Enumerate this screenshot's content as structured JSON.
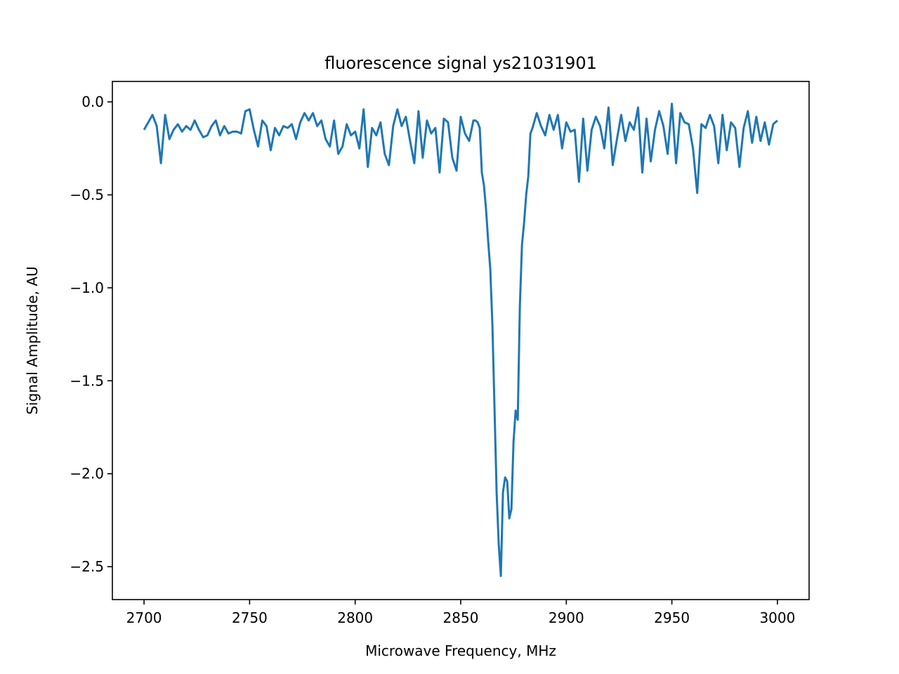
{
  "chart_data": {
    "type": "line",
    "title": "fluorescence signal ys21031901",
    "x_label": "Microwave Frequency, MHz",
    "y_label": "Signal Amplitude, AU",
    "x": [
      2700,
      2702,
      2704,
      2706,
      2708,
      2710,
      2712,
      2714,
      2716,
      2718,
      2720,
      2722,
      2724,
      2726,
      2728,
      2730,
      2732,
      2734,
      2736,
      2738,
      2740,
      2742,
      2744,
      2746,
      2748,
      2750,
      2752,
      2754,
      2756,
      2758,
      2760,
      2762,
      2764,
      2766,
      2768,
      2770,
      2772,
      2774,
      2776,
      2778,
      2780,
      2782,
      2784,
      2786,
      2788,
      2790,
      2792,
      2794,
      2796,
      2798,
      2800,
      2802,
      2804,
      2806,
      2808,
      2810,
      2812,
      2814,
      2816,
      2818,
      2820,
      2822,
      2824,
      2826,
      2828,
      2830,
      2832,
      2834,
      2836,
      2838,
      2840,
      2842,
      2844,
      2846,
      2848,
      2850,
      2852,
      2854,
      2856,
      2857,
      2858,
      2859,
      2860,
      2861,
      2862,
      2863,
      2864,
      2865,
      2866,
      2867,
      2868,
      2869,
      2870,
      2871,
      2872,
      2873,
      2874,
      2875,
      2876,
      2877,
      2878,
      2879,
      2880,
      2881,
      2882,
      2883,
      2884,
      2886,
      2888,
      2890,
      2892,
      2894,
      2896,
      2898,
      2900,
      2902,
      2904,
      2906,
      2908,
      2910,
      2912,
      2914,
      2916,
      2918,
      2920,
      2922,
      2924,
      2926,
      2928,
      2930,
      2932,
      2934,
      2936,
      2938,
      2940,
      2942,
      2944,
      2946,
      2948,
      2950,
      2952,
      2954,
      2956,
      2958,
      2960,
      2962,
      2964,
      2966,
      2968,
      2970,
      2972,
      2974,
      2976,
      2978,
      2980,
      2982,
      2984,
      2986,
      2988,
      2990,
      2992,
      2994,
      2996,
      2998,
      3000
    ],
    "series": [
      {
        "name": "signal",
        "color": "#1f77b4",
        "values": [
          -0.15,
          -0.11,
          -0.07,
          -0.13,
          -0.33,
          -0.07,
          -0.2,
          -0.15,
          -0.12,
          -0.16,
          -0.13,
          -0.15,
          -0.1,
          -0.15,
          -0.19,
          -0.18,
          -0.13,
          -0.1,
          -0.18,
          -0.13,
          -0.17,
          -0.16,
          -0.16,
          -0.17,
          -0.05,
          -0.04,
          -0.15,
          -0.24,
          -0.1,
          -0.13,
          -0.26,
          -0.14,
          -0.18,
          -0.13,
          -0.14,
          -0.12,
          -0.2,
          -0.11,
          -0.06,
          -0.1,
          -0.06,
          -0.13,
          -0.1,
          -0.2,
          -0.24,
          -0.1,
          -0.28,
          -0.24,
          -0.12,
          -0.18,
          -0.16,
          -0.25,
          -0.04,
          -0.35,
          -0.14,
          -0.18,
          -0.11,
          -0.28,
          -0.34,
          -0.13,
          -0.04,
          -0.13,
          -0.08,
          -0.21,
          -0.33,
          -0.05,
          -0.3,
          -0.1,
          -0.17,
          -0.14,
          -0.38,
          -0.09,
          -0.11,
          -0.3,
          -0.37,
          -0.08,
          -0.17,
          -0.21,
          -0.1,
          -0.1,
          -0.11,
          -0.14,
          -0.38,
          -0.45,
          -0.58,
          -0.75,
          -0.9,
          -1.2,
          -1.65,
          -2.1,
          -2.38,
          -2.55,
          -2.1,
          -2.02,
          -2.04,
          -2.24,
          -2.19,
          -1.83,
          -1.66,
          -1.71,
          -1.1,
          -0.77,
          -0.65,
          -0.5,
          -0.4,
          -0.17,
          -0.14,
          -0.06,
          -0.13,
          -0.18,
          -0.07,
          -0.15,
          -0.07,
          -0.25,
          -0.11,
          -0.16,
          -0.15,
          -0.43,
          -0.09,
          -0.37,
          -0.15,
          -0.08,
          -0.13,
          -0.25,
          -0.03,
          -0.34,
          -0.2,
          -0.07,
          -0.21,
          -0.11,
          -0.15,
          -0.03,
          -0.38,
          -0.09,
          -0.32,
          -0.15,
          -0.05,
          -0.13,
          -0.28,
          -0.01,
          -0.33,
          -0.06,
          -0.11,
          -0.12,
          -0.25,
          -0.49,
          -0.12,
          -0.14,
          -0.07,
          -0.13,
          -0.33,
          -0.07,
          -0.26,
          -0.11,
          -0.14,
          -0.35,
          -0.14,
          -0.05,
          -0.22,
          -0.08,
          -0.21,
          -0.11,
          -0.23,
          -0.12,
          -0.1
        ]
      }
    ],
    "xlim": [
      2685,
      3015
    ],
    "ylim": [
      -2.677,
      0.11
    ],
    "xticks": [
      2700,
      2750,
      2800,
      2850,
      2900,
      2950,
      3000
    ],
    "yticks": [
      {
        "value": 0,
        "label": "0.0"
      },
      {
        "value": -0.5,
        "label": "−0.5"
      },
      {
        "value": -1,
        "label": "−1.0"
      },
      {
        "value": -1.5,
        "label": "−1.5"
      },
      {
        "value": -2,
        "label": "−2.0"
      },
      {
        "value": -2.5,
        "label": "−2.5"
      }
    ],
    "grid": false
  }
}
